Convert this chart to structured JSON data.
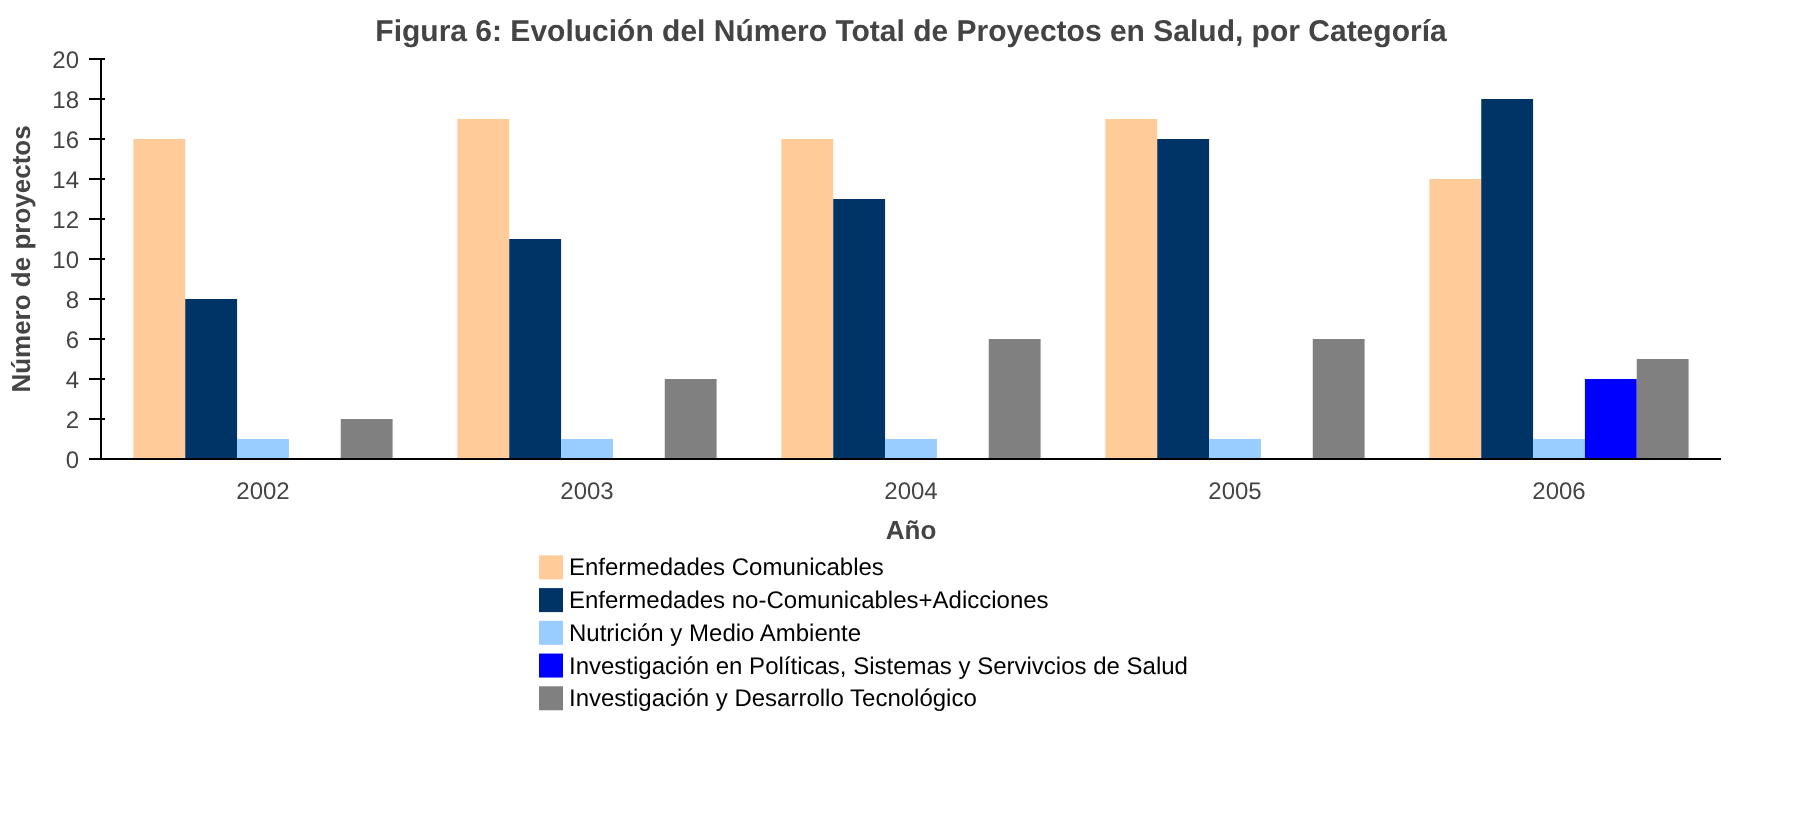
{
  "chart_data": {
    "type": "bar",
    "title": "Figura 6: Evolución del Número Total de Proyectos en Salud, por Categoría",
    "xlabel": "Año",
    "ylabel": "Número de proyectos",
    "categories": [
      "2002",
      "2003",
      "2004",
      "2005",
      "2006"
    ],
    "series": [
      {
        "name": "Enfermedades Comunicables",
        "color": "#ffcc99",
        "values": [
          16,
          17,
          16,
          17,
          14
        ]
      },
      {
        "name": "Enfermedades no-Comunicables+Adicciones",
        "color": "#003366",
        "values": [
          8,
          11,
          13,
          16,
          18
        ]
      },
      {
        "name": "Nutrición y Medio Ambiente",
        "color": "#99ccff",
        "values": [
          1,
          1,
          1,
          1,
          1
        ]
      },
      {
        "name": "Investigación en Políticas, Sistemas y Servivcios de Salud",
        "color": "#0000ff",
        "values": [
          0,
          0,
          0,
          0,
          4
        ]
      },
      {
        "name": "Investigación y Desarrollo Tecnológico",
        "color": "#808080",
        "values": [
          2,
          4,
          6,
          6,
          5
        ]
      }
    ],
    "ylim": [
      0,
      20
    ],
    "yticks": [
      0,
      2,
      4,
      6,
      8,
      10,
      12,
      14,
      16,
      18,
      20
    ],
    "grid": false,
    "legend": "bottom"
  }
}
